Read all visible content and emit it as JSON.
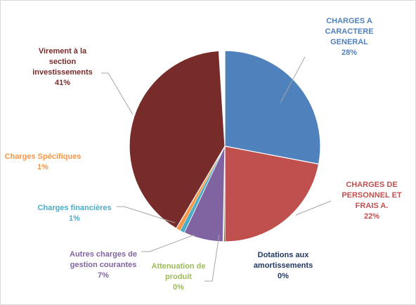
{
  "chart_data": {
    "type": "pie",
    "title": "",
    "slices": [
      {
        "name": "CHARGES A CARACTERE GENERAL",
        "name_lines": [
          "CHARGES A",
          "CARACTERE",
          "GENERAL"
        ],
        "value": 28,
        "label": "28%",
        "color": "#4f81bd",
        "label_color": "#4f81bd"
      },
      {
        "name": "CHARGES DE PERSONNEL ET FRAIS A.",
        "name_lines": [
          "CHARGES DE",
          "PERSONNEL ET",
          "FRAIS A."
        ],
        "value": 22,
        "label": "22%",
        "color": "#c0504d",
        "label_color": "#c0504d"
      },
      {
        "name": "Dotations aux amortissements",
        "name_lines": [
          "Dotations aux",
          "amortissements"
        ],
        "value": 0,
        "label": "0%",
        "color": "#1f3864",
        "label_color": "#1f3864"
      },
      {
        "name": "Attenuation de produit",
        "name_lines": [
          "Attenuation de",
          "produit"
        ],
        "value": 0,
        "label": "0%",
        "color": "#9bbb59",
        "label_color": "#9bbb59"
      },
      {
        "name": "Autres charges de gestion courantes",
        "name_lines": [
          "Autres charges de",
          "gestion courantes"
        ],
        "value": 7,
        "label": "7%",
        "color": "#8064a2",
        "label_color": "#8064a2"
      },
      {
        "name": "Charges financières",
        "name_lines": [
          "Charges financières"
        ],
        "value": 1,
        "label": "1%",
        "color": "#4bacc6",
        "label_color": "#4bacc6"
      },
      {
        "name": "Charges Spécifiques",
        "name_lines": [
          "Charges Spécifiques"
        ],
        "value": 1,
        "label": "1%",
        "color": "#f79646",
        "label_color": "#f79646"
      },
      {
        "name": "Virement à la section investissements",
        "name_lines": [
          "Virement à la",
          "section",
          "investissements"
        ],
        "value": 41,
        "label": "41%",
        "color": "#772c2a",
        "label_color": "#772c2a"
      }
    ]
  }
}
